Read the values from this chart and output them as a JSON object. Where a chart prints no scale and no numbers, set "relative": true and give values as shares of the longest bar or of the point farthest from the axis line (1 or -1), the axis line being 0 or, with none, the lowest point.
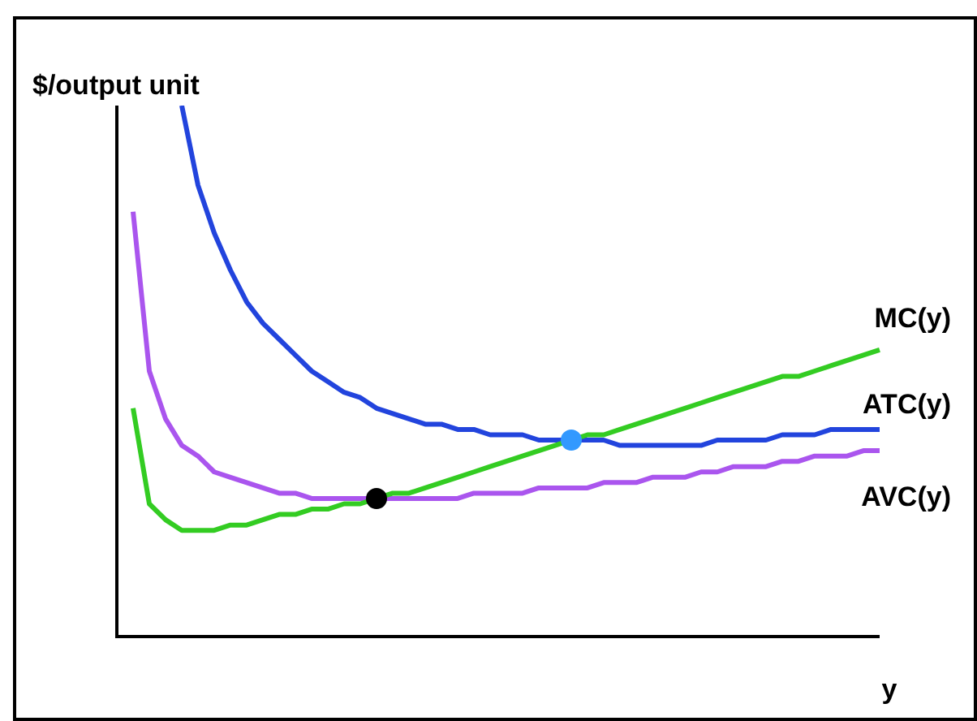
{
  "chart_data": {
    "type": "line",
    "relative": true,
    "ylabel": "$/output unit",
    "xlabel": "y",
    "legend": false,
    "marker": "none",
    "line_style": "solid",
    "categories": [
      null,
      null,
      null,
      null,
      null,
      null,
      null,
      null,
      null,
      null,
      null,
      null,
      null,
      null,
      null,
      null,
      null,
      null,
      null,
      null,
      null,
      null,
      null,
      null,
      null,
      null,
      null,
      null,
      null,
      null,
      null,
      null,
      null,
      null,
      null,
      null,
      null,
      null,
      null,
      null,
      null,
      null,
      null,
      null,
      null,
      null,
      null,
      null
    ],
    "series": [
      {
        "name": "MC(y)",
        "color": "#33cc22",
        "values": [
          null,
          0.43,
          0.25,
          0.22,
          0.2,
          0.2,
          0.2,
          0.21,
          0.21,
          0.22,
          0.23,
          0.23,
          0.24,
          0.24,
          0.25,
          0.25,
          0.26,
          0.27,
          0.27,
          0.28,
          0.29,
          0.3,
          0.31,
          0.32,
          0.33,
          0.34,
          0.35,
          0.36,
          0.37,
          0.38,
          0.38,
          0.39,
          0.4,
          0.41,
          0.42,
          0.43,
          0.44,
          0.45,
          0.46,
          0.47,
          0.48,
          0.49,
          0.49,
          0.5,
          0.51,
          0.52,
          0.53,
          0.54
        ]
      },
      {
        "name": "ATC(y)",
        "color": "#2244dd",
        "values": [
          null,
          null,
          null,
          null,
          1,
          0.85,
          0.76,
          0.69,
          0.63,
          0.59,
          0.56,
          0.53,
          0.5,
          0.48,
          0.46,
          0.45,
          0.43,
          0.42,
          0.41,
          0.4,
          0.4,
          0.39,
          0.39,
          0.38,
          0.38,
          0.38,
          0.37,
          0.37,
          0.37,
          0.37,
          0.37,
          0.36,
          0.36,
          0.36,
          0.36,
          0.36,
          0.36,
          0.37,
          0.37,
          0.37,
          0.37,
          0.38,
          0.38,
          0.38,
          0.39,
          0.39,
          0.39,
          0.39
        ]
      },
      {
        "name": "AVC(y)",
        "color": "#aa55ee",
        "values": [
          null,
          0.8,
          0.5,
          0.41,
          0.36,
          0.34,
          0.31,
          0.3,
          0.29,
          0.28,
          0.27,
          0.27,
          0.26,
          0.26,
          0.26,
          0.26,
          0.26,
          0.26,
          0.26,
          0.26,
          0.26,
          0.26,
          0.27,
          0.27,
          0.27,
          0.27,
          0.28,
          0.28,
          0.28,
          0.28,
          0.29,
          0.29,
          0.29,
          0.3,
          0.3,
          0.3,
          0.31,
          0.31,
          0.32,
          0.32,
          0.32,
          0.33,
          0.33,
          0.34,
          0.34,
          0.34,
          0.35,
          0.35
        ]
      },
      {
        "marker": "circle",
        "color": "#000000",
        "values": [
          null,
          null,
          null,
          null,
          null,
          null,
          null,
          null,
          null,
          null,
          null,
          null,
          null,
          null,
          null,
          null,
          0.26,
          null,
          null,
          null,
          null,
          null,
          null,
          null,
          null,
          null,
          null,
          null,
          null,
          null,
          null,
          null,
          null,
          null,
          null,
          null,
          null,
          null,
          null,
          null,
          null,
          null,
          null,
          null,
          null,
          null,
          null,
          null
        ]
      },
      {
        "marker": "circle",
        "color": "#3399ff",
        "values": [
          null,
          null,
          null,
          null,
          null,
          null,
          null,
          null,
          null,
          null,
          null,
          null,
          null,
          null,
          null,
          null,
          null,
          null,
          null,
          null,
          null,
          null,
          null,
          null,
          null,
          null,
          null,
          null,
          0.37,
          null,
          null,
          null,
          null,
          null,
          null,
          null,
          null,
          null,
          null,
          null,
          null,
          null,
          null,
          null,
          null,
          null,
          null,
          null
        ]
      }
    ]
  }
}
